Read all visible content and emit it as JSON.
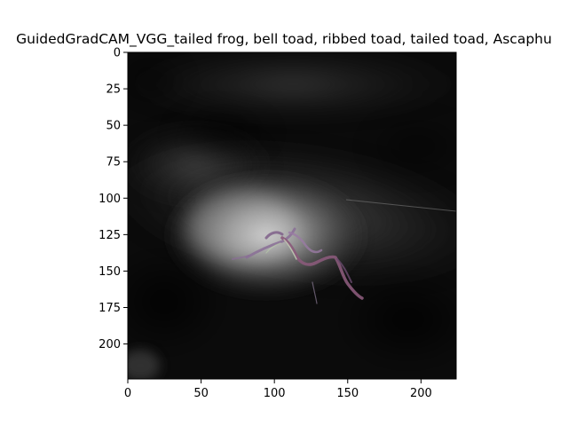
{
  "figure": {
    "title": "GuidedGradCAM_VGG_tailed frog, bell toad, ribbed toad, tailed toad, Ascaphu",
    "colors": {
      "background": "#ffffff",
      "axes_frame": "#000000",
      "image_dark": "#0a0a0a",
      "image_glow": "#d6d6d6",
      "subject_stroke": "#8a6e96",
      "subject_highlight": "#cfe2c2"
    }
  },
  "chart_data": {
    "type": "heatmap",
    "title": "GuidedGradCAM_VGG_tailed frog, bell toad, ribbed toad, tailed toad, Ascaphu",
    "xlabel": "",
    "ylabel": "",
    "xlim": [
      0,
      224
    ],
    "ylim": [
      224,
      0
    ],
    "x_ticks": [
      "0",
      "50",
      "100",
      "150",
      "200"
    ],
    "y_ticks": [
      "0",
      "25",
      "50",
      "75",
      "100",
      "125",
      "150",
      "175",
      "200"
    ],
    "grid": false,
    "content": "grayscale saliency map overlay on photo"
  }
}
